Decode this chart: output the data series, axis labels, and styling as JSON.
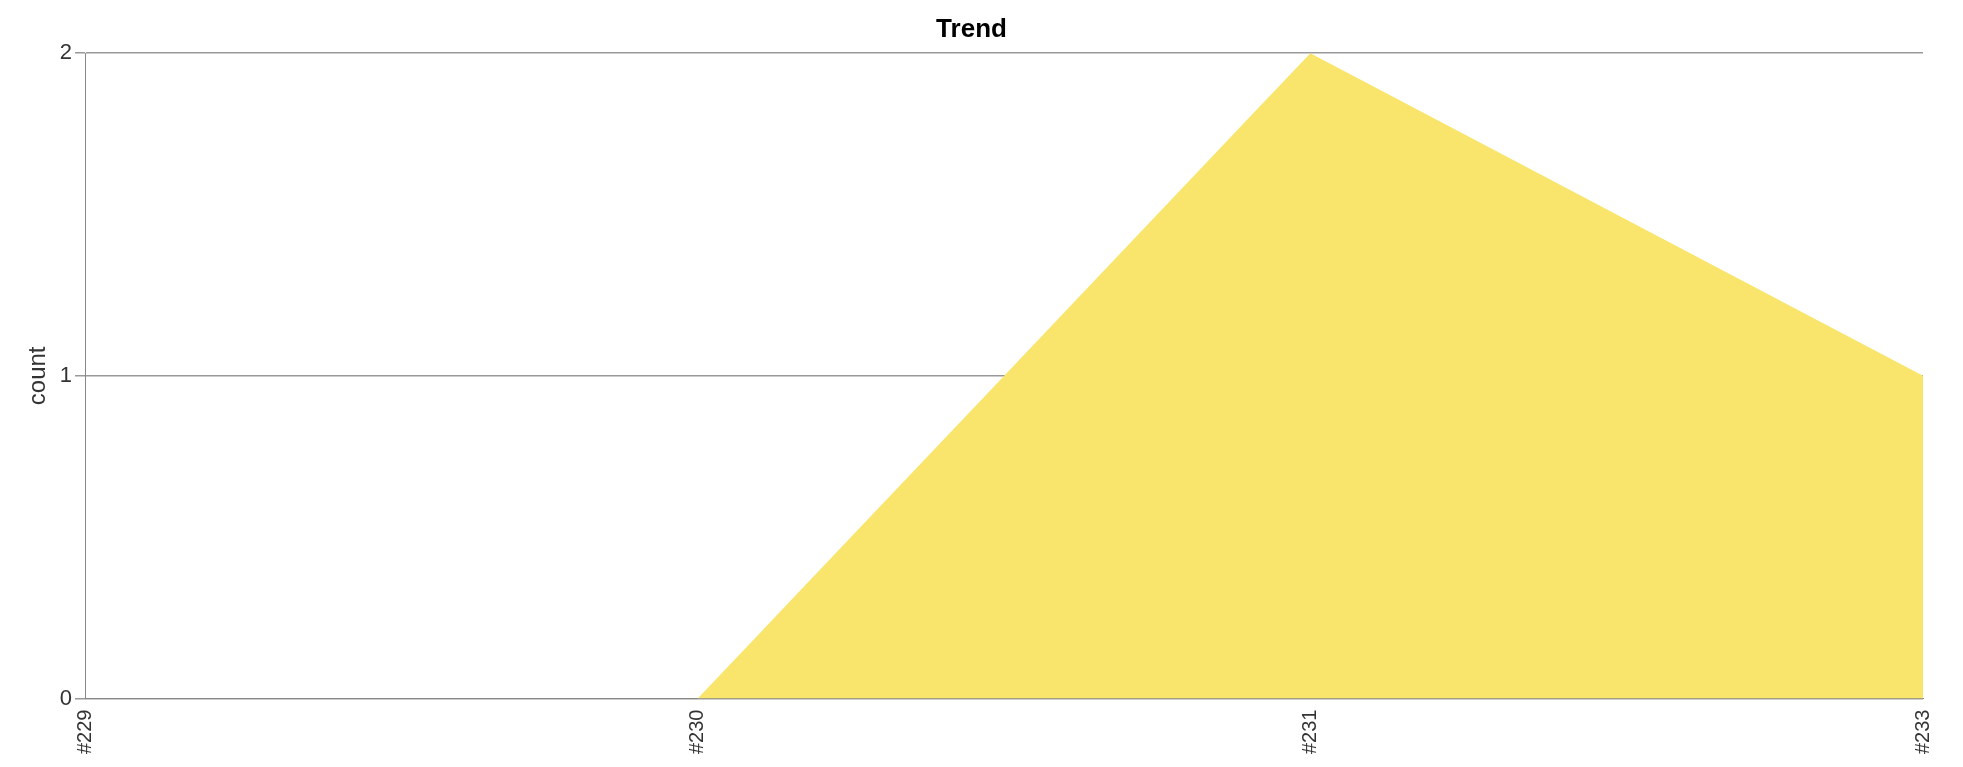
{
  "chart_data": {
    "type": "area",
    "title": "Trend",
    "ylabel": "count",
    "categories": [
      "#229",
      "#230",
      "#231",
      "#233"
    ],
    "series": [
      {
        "color": "#f9e56c",
        "values": [
          0,
          0,
          2,
          1
        ]
      }
    ],
    "ylim": [
      0,
      2
    ],
    "yticks": [
      0,
      1,
      2
    ],
    "grid": "y",
    "legend": false
  }
}
